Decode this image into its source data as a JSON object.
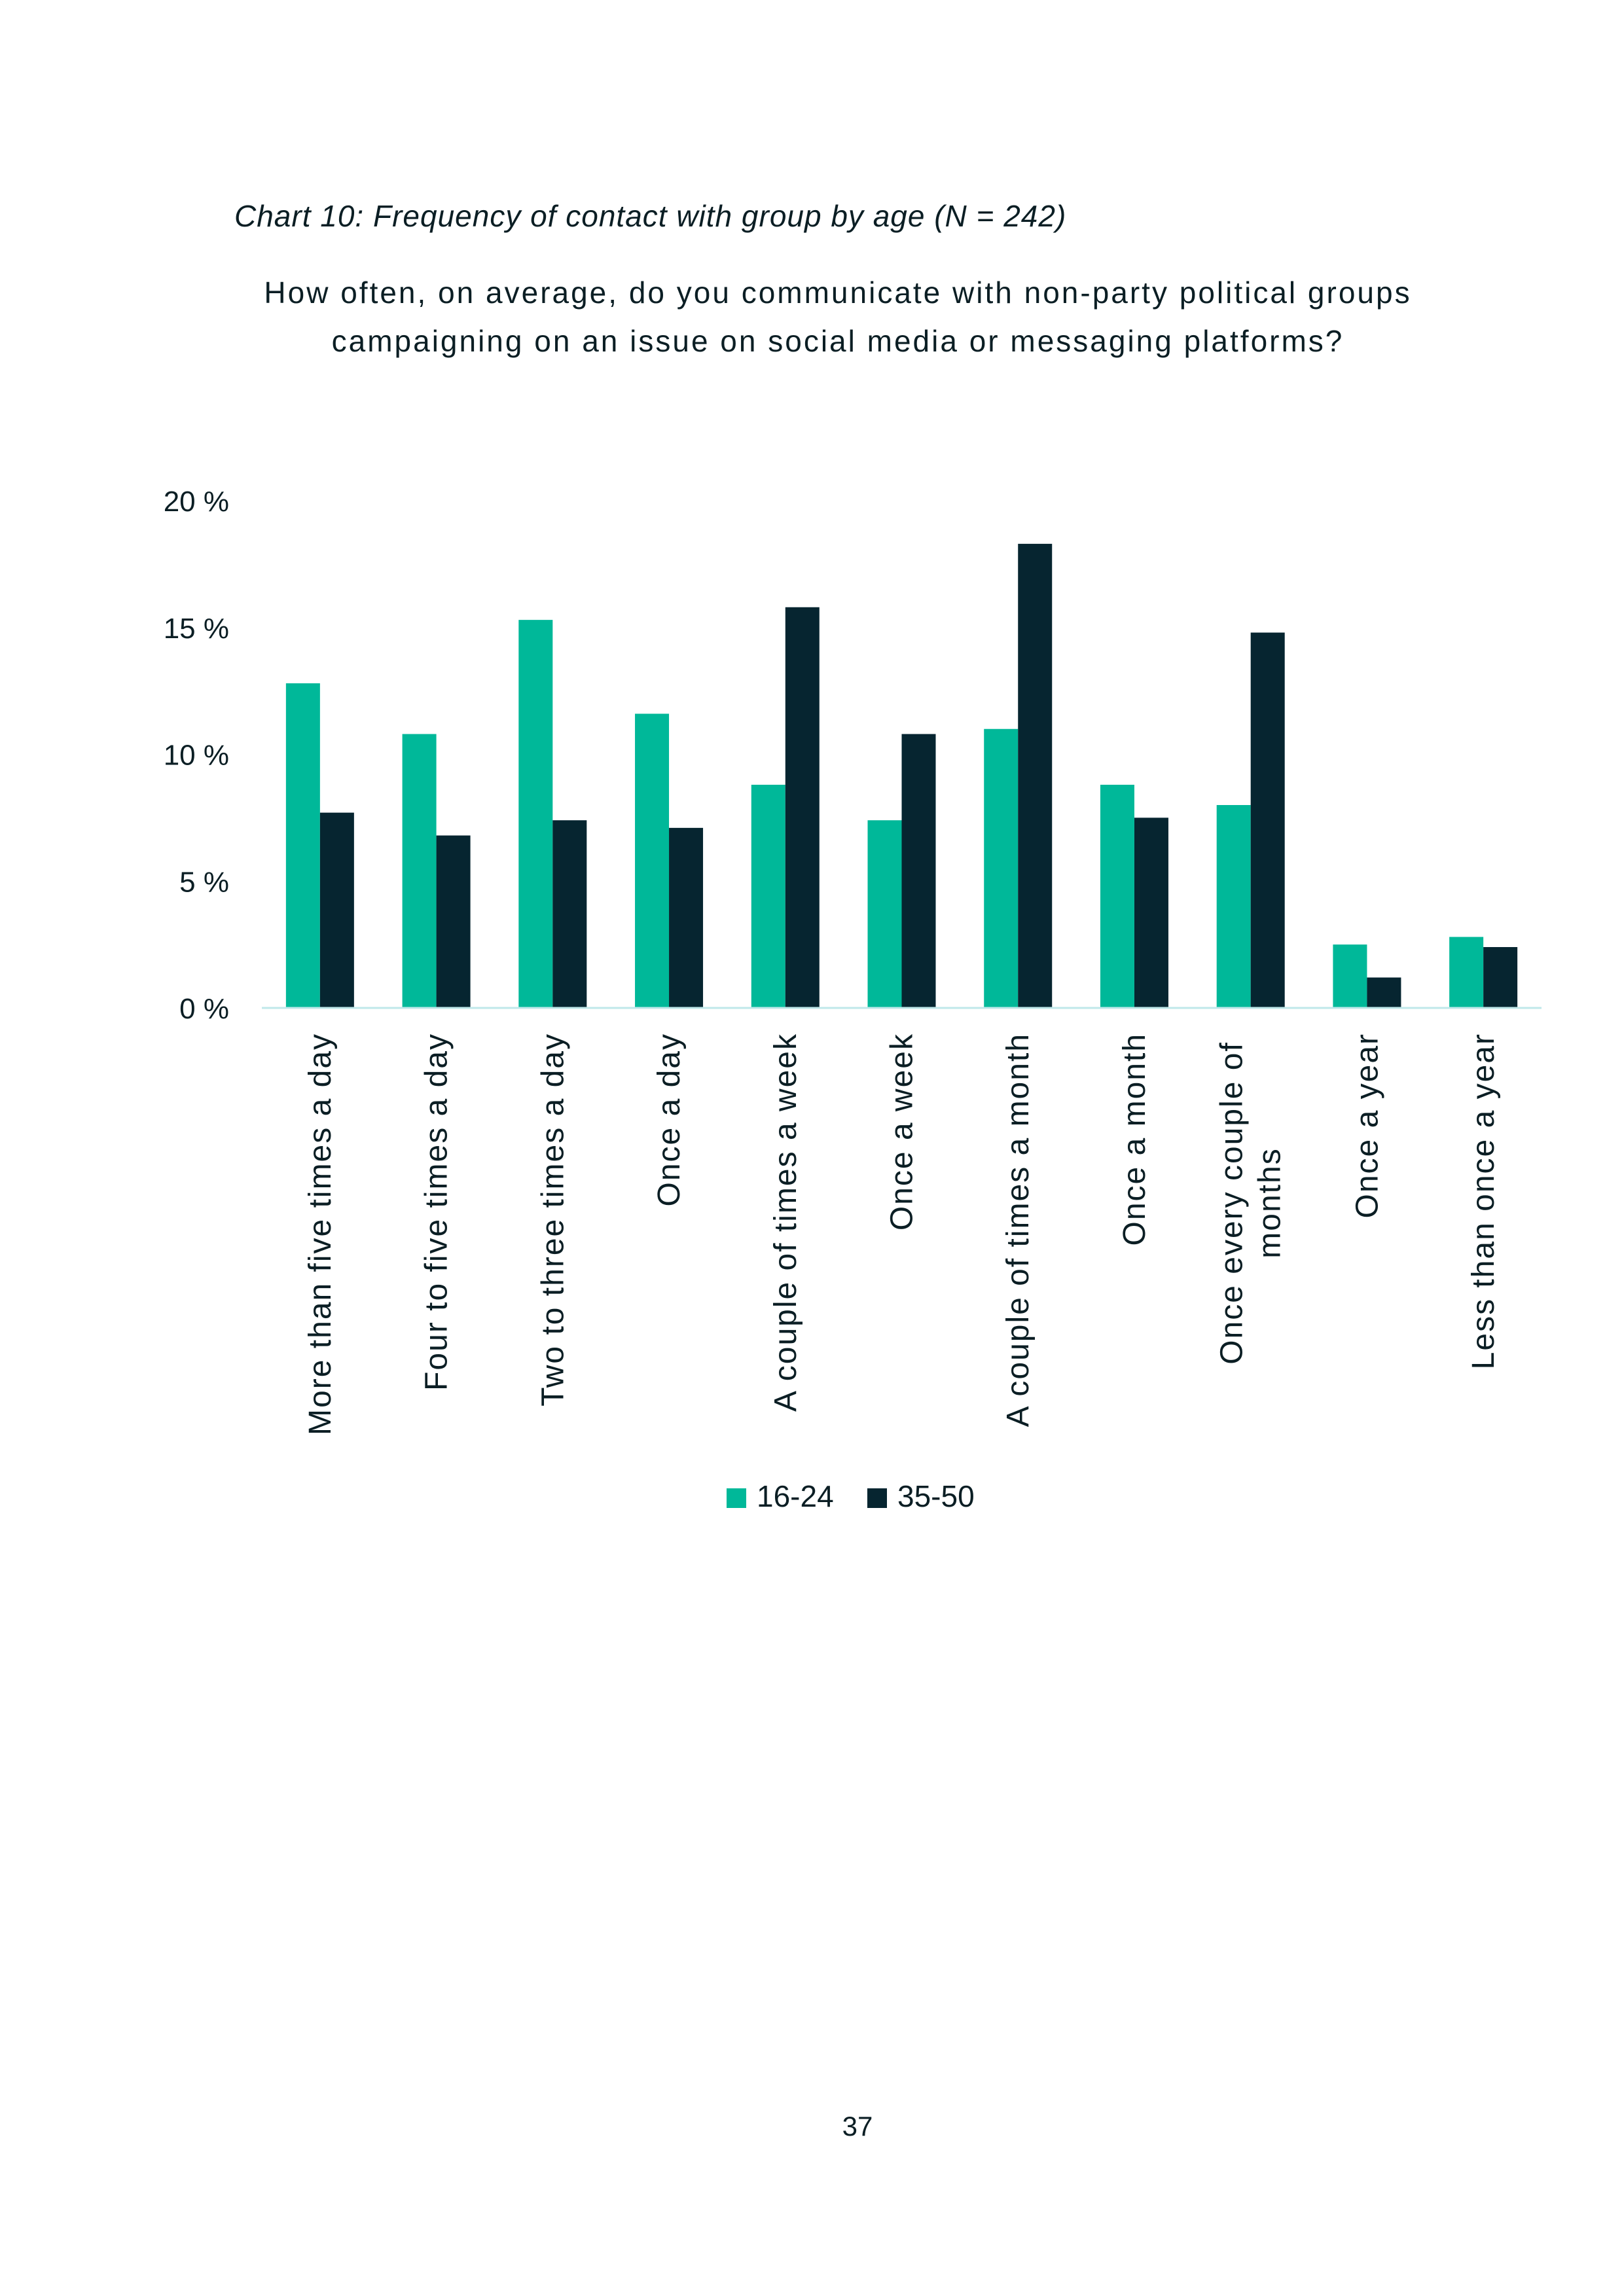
{
  "caption": "Chart 10: Frequency of contact with group by age (N = 242)",
  "question_line1": "How often, on average, do you communicate with non-party political groups",
  "question_line2": "campaigning on an issue on social media or messaging platforms?",
  "page_number": "37",
  "colors": {
    "series_16_24": "#00b899",
    "series_35_50": "#062530",
    "baseline": "#bfe8ea",
    "text": "#0b1e24"
  },
  "chart_data": {
    "type": "bar",
    "categories": [
      [
        "More than five times a day"
      ],
      [
        "Four to five times a day"
      ],
      [
        "Two to three times a day"
      ],
      [
        "Once a day"
      ],
      [
        "A couple of times a week"
      ],
      [
        "Once a week"
      ],
      [
        "A couple of times a month"
      ],
      [
        "Once a month"
      ],
      [
        "Once every couple of",
        "months"
      ],
      [
        "Once a year"
      ],
      [
        "Less than once a year"
      ]
    ],
    "series": [
      {
        "name": "16-24",
        "values": [
          12.8,
          10.8,
          15.3,
          11.6,
          8.8,
          7.4,
          11.0,
          8.8,
          8.0,
          2.5,
          2.8
        ]
      },
      {
        "name": "35-50",
        "values": [
          7.7,
          6.8,
          7.4,
          7.1,
          15.8,
          10.8,
          18.3,
          7.5,
          14.8,
          1.2,
          2.4
        ]
      }
    ],
    "yticks": [
      "0 %",
      "5 %",
      "10 %",
      "15 %",
      "20 %"
    ],
    "ylim": [
      0,
      20
    ],
    "grid": false,
    "legend_position": "bottom-center"
  }
}
